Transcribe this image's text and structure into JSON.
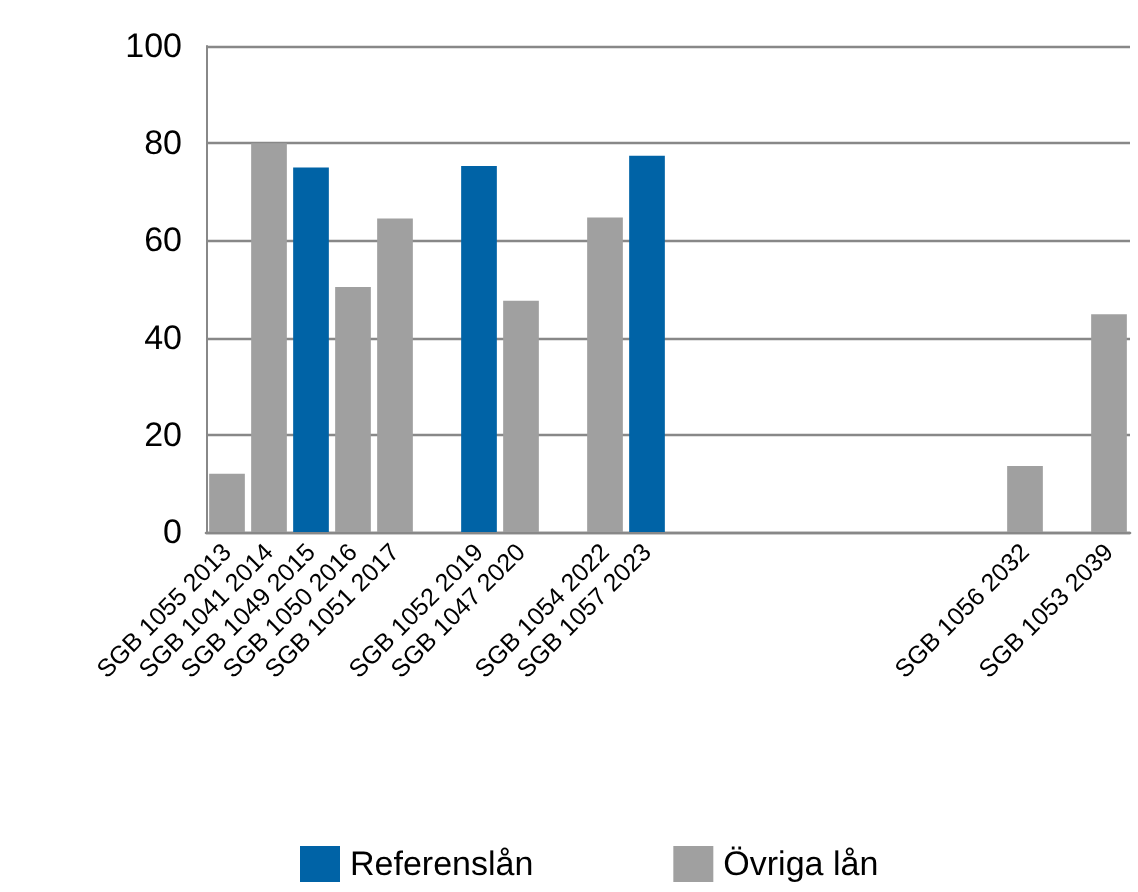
{
  "chart_data": {
    "type": "bar",
    "categories": [
      "SGB 1055 2013",
      "SGB 1041 2014",
      "SGB 1049 2015",
      "SGB 1050 2016",
      "SGB 1051 2017",
      null,
      "SGB 1052 2019",
      "SGB 1047 2020",
      null,
      "SGB 1054 2022",
      "SGB 1057 2023",
      null,
      null,
      null,
      null,
      null,
      null,
      null,
      null,
      "SGB 1056 2032",
      null,
      "SGB 1053 2039"
    ],
    "series": [
      {
        "name": "Referenslån",
        "color": "#0063a6",
        "values": [
          null,
          null,
          75,
          null,
          null,
          null,
          75.3,
          null,
          null,
          null,
          77.4,
          null,
          null,
          null,
          null,
          null,
          null,
          null,
          null,
          null,
          null,
          null
        ]
      },
      {
        "name": "Övriga lån",
        "color": "#a0a0a0",
        "values": [
          12,
          80,
          null,
          50.4,
          64.5,
          null,
          null,
          47.6,
          null,
          64.7,
          null,
          null,
          null,
          null,
          null,
          null,
          null,
          null,
          null,
          13.6,
          null,
          44.8
        ]
      }
    ],
    "ylim": [
      0,
      100
    ],
    "yticks": [
      0,
      20,
      40,
      60,
      80,
      100
    ],
    "grid": "y",
    "legend": "bottom"
  }
}
